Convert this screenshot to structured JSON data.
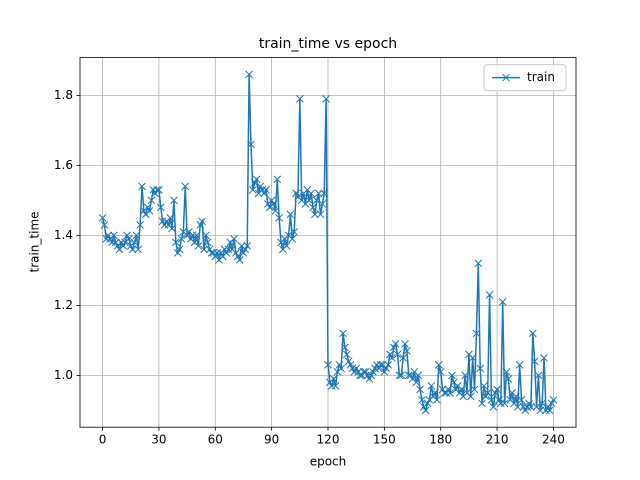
{
  "chart_data": {
    "type": "line",
    "title": "train_time vs epoch",
    "x_label": "epoch",
    "y_label": "train_time",
    "x": [
      0,
      1,
      2,
      3,
      4,
      5,
      6,
      7,
      8,
      9,
      10,
      11,
      12,
      13,
      14,
      15,
      16,
      17,
      18,
      19,
      20,
      21,
      22,
      23,
      24,
      25,
      26,
      27,
      28,
      29,
      30,
      31,
      32,
      33,
      34,
      35,
      36,
      37,
      38,
      39,
      40,
      41,
      42,
      43,
      44,
      45,
      46,
      47,
      48,
      49,
      50,
      51,
      52,
      53,
      54,
      55,
      56,
      57,
      58,
      59,
      60,
      61,
      62,
      63,
      64,
      65,
      66,
      67,
      68,
      69,
      70,
      71,
      72,
      73,
      74,
      75,
      76,
      77,
      78,
      79,
      80,
      81,
      82,
      83,
      84,
      85,
      86,
      87,
      88,
      89,
      90,
      91,
      92,
      93,
      94,
      95,
      96,
      97,
      98,
      99,
      100,
      101,
      102,
      103,
      104,
      105,
      106,
      107,
      108,
      109,
      110,
      111,
      112,
      113,
      114,
      115,
      116,
      117,
      118,
      119,
      120,
      121,
      122,
      123,
      124,
      125,
      126,
      127,
      128,
      129,
      130,
      131,
      132,
      133,
      134,
      135,
      136,
      137,
      138,
      139,
      140,
      141,
      142,
      143,
      144,
      145,
      146,
      147,
      148,
      149,
      150,
      151,
      152,
      153,
      154,
      155,
      156,
      157,
      158,
      159,
      160,
      161,
      162,
      163,
      164,
      165,
      166,
      167,
      168,
      169,
      170,
      171,
      172,
      173,
      174,
      175,
      176,
      177,
      178,
      179,
      180,
      181,
      182,
      183,
      184,
      185,
      186,
      187,
      188,
      189,
      190,
      191,
      192,
      193,
      194,
      195,
      196,
      197,
      198,
      199,
      200,
      201,
      202,
      203,
      204,
      205,
      206,
      207,
      208,
      209,
      210,
      211,
      212,
      213,
      214,
      215,
      216,
      217,
      218,
      219,
      220,
      221,
      222,
      223,
      224,
      225,
      226,
      227,
      228,
      229,
      230,
      231,
      232,
      233,
      234,
      235,
      236,
      237,
      238,
      239,
      240
    ],
    "series": [
      {
        "name": "train",
        "color": "#1f77b4",
        "values": [
          1.45,
          1.43,
          1.39,
          1.4,
          1.39,
          1.38,
          1.4,
          1.38,
          1.37,
          1.36,
          1.38,
          1.37,
          1.38,
          1.4,
          1.39,
          1.37,
          1.36,
          1.38,
          1.4,
          1.36,
          1.43,
          1.54,
          1.47,
          1.46,
          1.48,
          1.47,
          1.5,
          1.53,
          1.52,
          1.53,
          1.53,
          1.48,
          1.44,
          1.43,
          1.44,
          1.43,
          1.45,
          1.42,
          1.5,
          1.38,
          1.35,
          1.36,
          1.39,
          1.41,
          1.54,
          1.4,
          1.41,
          1.39,
          1.4,
          1.38,
          1.4,
          1.37,
          1.43,
          1.44,
          1.36,
          1.4,
          1.38,
          1.36,
          1.35,
          1.35,
          1.34,
          1.35,
          1.33,
          1.35,
          1.34,
          1.36,
          1.35,
          1.36,
          1.38,
          1.36,
          1.39,
          1.35,
          1.34,
          1.33,
          1.37,
          1.35,
          1.36,
          1.37,
          1.86,
          1.66,
          1.53,
          1.55,
          1.56,
          1.52,
          1.54,
          1.53,
          1.52,
          1.53,
          1.49,
          1.48,
          1.5,
          1.49,
          1.47,
          1.56,
          1.45,
          1.38,
          1.36,
          1.39,
          1.37,
          1.4,
          1.46,
          1.39,
          1.41,
          1.52,
          1.51,
          1.79,
          1.5,
          1.52,
          1.49,
          1.53,
          1.5,
          1.52,
          1.48,
          1.46,
          1.5,
          1.52,
          1.46,
          1.49,
          1.52,
          1.79,
          1.03,
          0.98,
          0.97,
          0.99,
          0.97,
          1.01,
          1.03,
          1.02,
          1.12,
          1.08,
          1.06,
          1.04,
          1.03,
          1.02,
          1.01,
          1.02,
          1.01,
          1.0,
          1.0,
          1.01,
          1.01,
          1.0,
          0.99,
          1.0,
          1.01,
          1.02,
          1.03,
          1.02,
          1.03,
          1.03,
          1.01,
          1.02,
          1.03,
          1.06,
          1.05,
          1.08,
          1.09,
          1.06,
          1.0,
          1.0,
          1.05,
          1.09,
          1.07,
          1.0,
          1.0,
          0.99,
          1.01,
          0.98,
          1.0,
          0.96,
          0.93,
          0.91,
          0.9,
          0.92,
          0.93,
          0.97,
          0.94,
          0.95,
          0.93,
          1.03,
          1.01,
          0.96,
          0.95,
          0.95,
          0.96,
          0.95,
          1.0,
          0.98,
          0.96,
          0.97,
          0.95,
          0.96,
          0.94,
          1.0,
          0.95,
          1.06,
          0.94,
          1.05,
          0.96,
          1.12,
          1.32,
          1.02,
          0.92,
          0.97,
          0.94,
          0.95,
          1.23,
          0.93,
          0.91,
          0.95,
          0.96,
          0.93,
          0.92,
          1.21,
          0.92,
          1.01,
          0.99,
          0.93,
          0.95,
          0.92,
          0.94,
          0.91,
          1.03,
          0.93,
          0.91,
          0.9,
          0.91,
          0.92,
          0.91,
          1.12,
          1.04,
          0.91,
          1.0,
          0.9,
          0.92,
          1.05,
          0.9,
          0.91,
          0.9,
          0.92,
          0.93
        ]
      }
    ],
    "xlim": [
      -12,
      252
    ],
    "xticks": [
      0,
      30,
      60,
      90,
      120,
      150,
      180,
      210,
      240
    ],
    "ylim": [
      0.852,
      1.908
    ],
    "yticks": [
      {
        "value": 1,
        "label": "1.0"
      },
      {
        "value": 1.2,
        "label": "1.2"
      },
      {
        "value": 1.4,
        "label": "1.4"
      },
      {
        "value": 1.6,
        "label": "1.6"
      },
      {
        "value": 1.8,
        "label": "1.8"
      }
    ],
    "grid": true,
    "legend": "upper right",
    "marker": "x"
  }
}
